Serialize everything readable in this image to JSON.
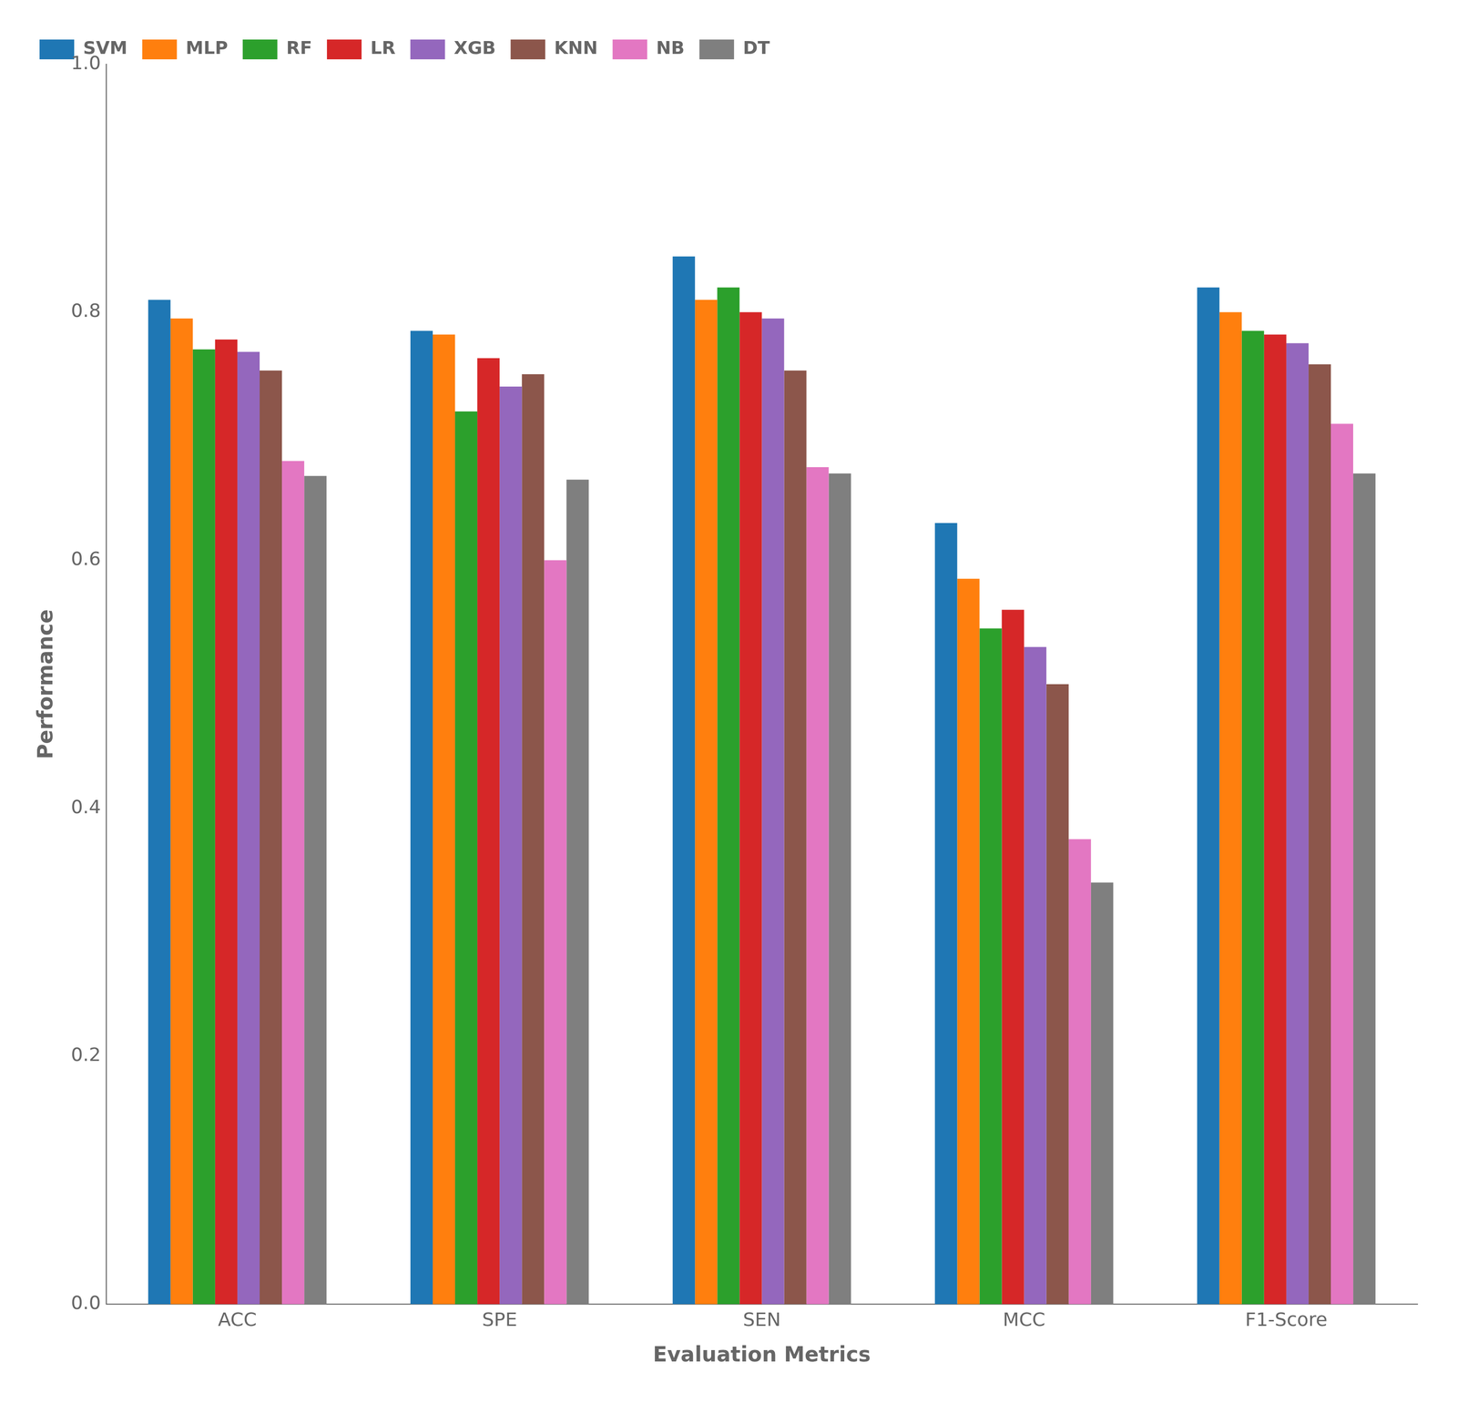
{
  "chart_data": {
    "type": "bar",
    "categories": [
      "ACC",
      "SPE",
      "SEN",
      "MCC",
      "F1-Score"
    ],
    "series": [
      {
        "name": "SVM",
        "color": "#1f77b4",
        "values": [
          0.81,
          0.785,
          0.845,
          0.63,
          0.82
        ]
      },
      {
        "name": "MLP",
        "color": "#ff7f0e",
        "values": [
          0.795,
          0.782,
          0.81,
          0.585,
          0.8
        ]
      },
      {
        "name": "RF",
        "color": "#2ca02c",
        "values": [
          0.77,
          0.72,
          0.82,
          0.545,
          0.785
        ]
      },
      {
        "name": "LR",
        "color": "#d62728",
        "values": [
          0.778,
          0.763,
          0.8,
          0.56,
          0.782
        ]
      },
      {
        "name": "XGB",
        "color": "#9467bd",
        "values": [
          0.768,
          0.74,
          0.795,
          0.53,
          0.775
        ]
      },
      {
        "name": "KNN",
        "color": "#8c564b",
        "values": [
          0.753,
          0.75,
          0.753,
          0.5,
          0.758
        ]
      },
      {
        "name": "NB",
        "color": "#e377c2",
        "values": [
          0.68,
          0.6,
          0.675,
          0.375,
          0.71
        ]
      },
      {
        "name": "DT",
        "color": "#7f7f7f",
        "values": [
          0.668,
          0.665,
          0.67,
          0.34,
          0.67
        ]
      }
    ],
    "xlabel": "Evaluation Metrics",
    "ylabel": "Performance",
    "ylim": [
      0.0,
      1.0
    ],
    "yticks": [
      {
        "value": 0,
        "label": "0.0"
      },
      0.2,
      0.4,
      0.6,
      0.8,
      {
        "value": 1,
        "label": "1.0"
      }
    ],
    "grid": false,
    "legend": "upper left"
  }
}
